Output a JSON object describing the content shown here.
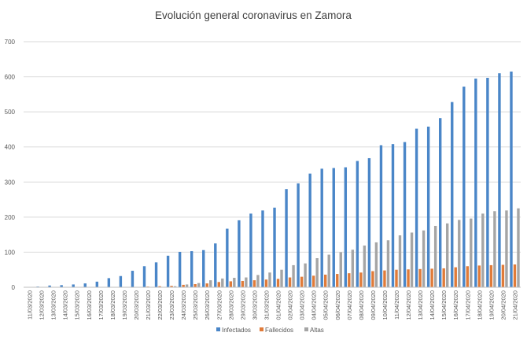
{
  "chart_data": {
    "type": "bar",
    "title": "Evolución general coronavirus en Zamora",
    "xlabel": "",
    "ylabel": "",
    "ylim": [
      0,
      700
    ],
    "yticks": [
      0,
      100,
      200,
      300,
      400,
      500,
      600,
      700
    ],
    "grid": true,
    "legend_position": "bottom",
    "categories": [
      "11/03/2020",
      "12/03/2020",
      "13/03/2020",
      "14/03/2020",
      "15/03/2020",
      "16/03/2020",
      "17/03/2020",
      "18/03/2020",
      "19/03/2020",
      "20/03/2020",
      "21/03/2020",
      "22/03/2020",
      "23/03/2020",
      "24/03/2020",
      "25/03/2020",
      "26/03/2020",
      "27/03/2020",
      "28/03/2020",
      "29/03/2020",
      "30/03/2020",
      "31/03/2020",
      "01/04/2020",
      "02/04/2020",
      "03/04/2020",
      "04/04/2020",
      "05/04/2020",
      "06/04/2020",
      "07/04/2020",
      "08/04/2020",
      "09/04/2020",
      "10/04/2020",
      "11/04/2020",
      "12/04/2020",
      "13/04/2020",
      "14/04/2020",
      "15/04/2020",
      "16/04/2020",
      "17/04/2020",
      "18/04/2020",
      "19/04/2020",
      "20/04/2020",
      "21/04/2020"
    ],
    "series": [
      {
        "name": "Infectados",
        "color": "#4a86c8",
        "values": [
          1,
          2,
          5,
          6,
          8,
          11,
          16,
          26,
          32,
          47,
          60,
          71,
          90,
          101,
          103,
          106,
          125,
          167,
          191,
          210,
          219,
          227,
          280,
          296,
          324,
          338,
          340,
          342,
          360,
          368,
          405,
          408,
          414,
          452,
          458,
          482,
          528,
          572,
          595,
          597,
          610,
          615
        ]
      },
      {
        "name": "Fallecidos",
        "color": "#e07b39",
        "values": [
          0,
          0,
          0,
          0,
          0,
          0,
          0,
          0,
          0,
          0,
          2,
          3,
          4,
          7,
          9,
          11,
          15,
          17,
          18,
          20,
          22,
          24,
          28,
          30,
          33,
          36,
          38,
          40,
          42,
          46,
          48,
          50,
          51,
          52,
          53,
          54,
          57,
          60,
          62,
          63,
          64,
          65
        ]
      },
      {
        "name": "Altas",
        "color": "#a5a5a5",
        "values": [
          0,
          0,
          0,
          0,
          0,
          0,
          0,
          0,
          0,
          0,
          0,
          0,
          3,
          8,
          12,
          20,
          25,
          27,
          28,
          35,
          42,
          50,
          63,
          68,
          83,
          93,
          100,
          107,
          119,
          128,
          134,
          148,
          156,
          162,
          175,
          182,
          192,
          196,
          210,
          217,
          219,
          225
        ]
      }
    ]
  }
}
